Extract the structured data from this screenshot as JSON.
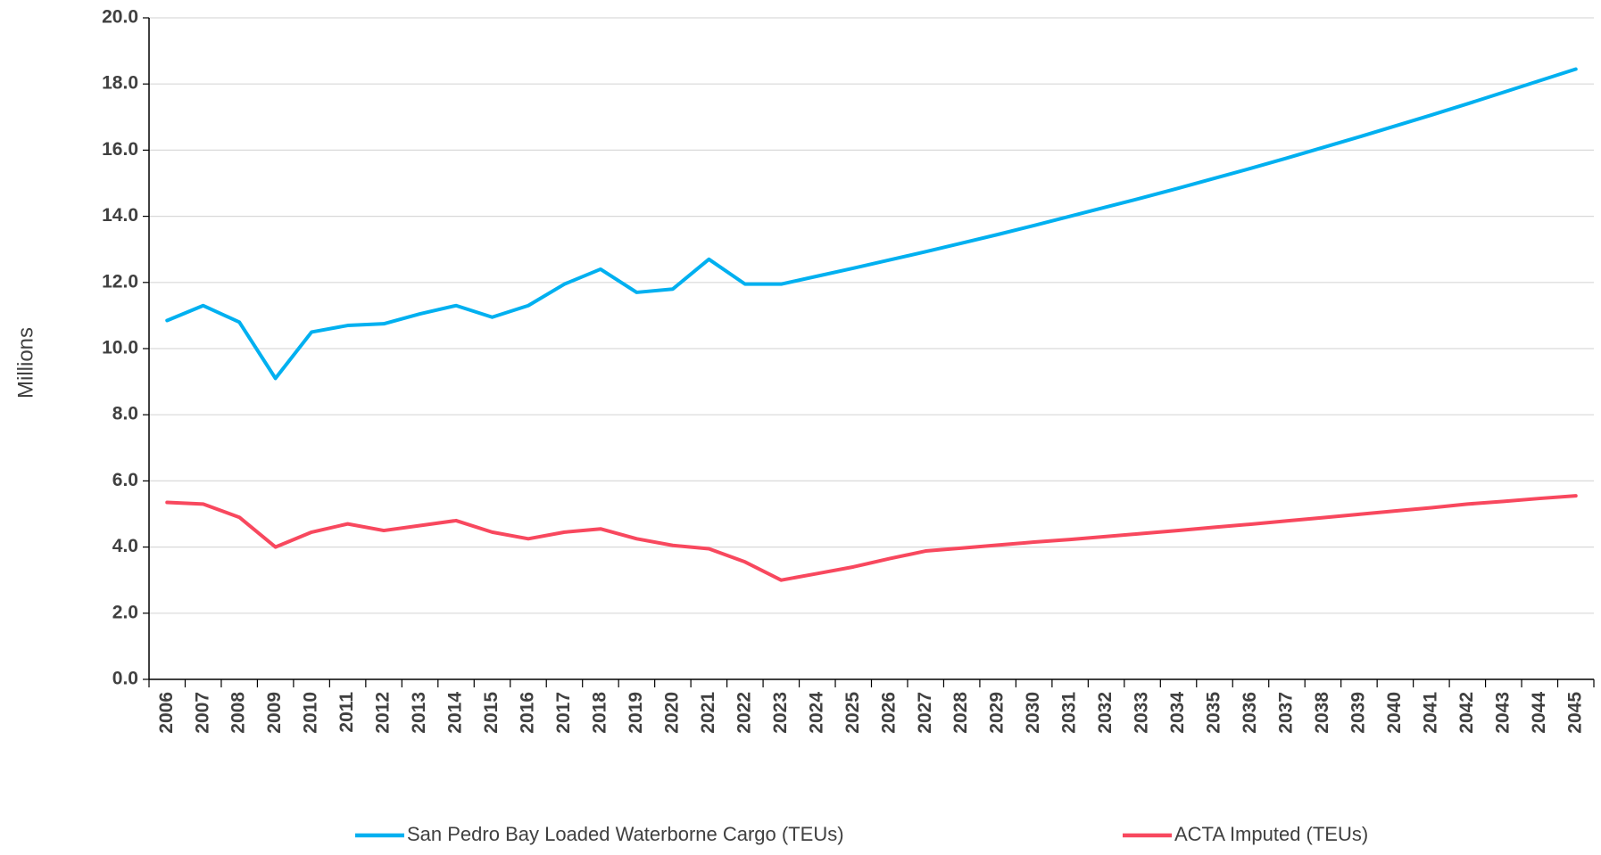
{
  "chart_data": {
    "type": "line",
    "y_label": "Millions",
    "categories": [
      "2006",
      "2007",
      "2008",
      "2009",
      "2010",
      "2011",
      "2012",
      "2013",
      "2014",
      "2015",
      "2016",
      "2017",
      "2018",
      "2019",
      "2020",
      "2021",
      "2022",
      "2023",
      "2024",
      "2025",
      "2026",
      "2027",
      "2028",
      "2029",
      "2030",
      "2031",
      "2032",
      "2033",
      "2034",
      "2035",
      "2036",
      "2037",
      "2038",
      "2039",
      "2040",
      "2041",
      "2042",
      "2043",
      "2044",
      "2045"
    ],
    "series": [
      {
        "name": "San Pedro Bay Loaded Waterborne Cargo (TEUs)",
        "color": "#00b0f0",
        "values": [
          10.85,
          11.3,
          10.8,
          9.1,
          10.5,
          10.7,
          10.75,
          11.05,
          11.3,
          10.95,
          11.3,
          11.95,
          12.4,
          11.7,
          11.8,
          12.7,
          11.95,
          11.95,
          12.19,
          12.43,
          12.68,
          12.93,
          13.19,
          13.45,
          13.72,
          14.0,
          14.28,
          14.56,
          14.85,
          15.15,
          15.45,
          15.76,
          16.08,
          16.4,
          16.73,
          17.06,
          17.4,
          17.75,
          18.1,
          18.45
        ]
      },
      {
        "name": "ACTA Imputed (TEUs)",
        "color": "#f8485e",
        "values": [
          5.35,
          5.3,
          4.9,
          4.0,
          4.45,
          4.7,
          4.5,
          4.65,
          4.8,
          4.45,
          4.25,
          4.45,
          4.55,
          4.25,
          4.05,
          3.95,
          3.55,
          3.0,
          3.2,
          3.4,
          3.65,
          3.88,
          3.97,
          4.06,
          4.15,
          4.23,
          4.32,
          4.41,
          4.5,
          4.6,
          4.69,
          4.79,
          4.89,
          4.99,
          5.09,
          5.19,
          5.3,
          5.38,
          5.47,
          5.55
        ]
      }
    ],
    "ylim": [
      0,
      20
    ],
    "yticks": [
      {
        "value": 0,
        "label": "0.0"
      },
      {
        "value": 2,
        "label": "2.0"
      },
      {
        "value": 4,
        "label": "4.0"
      },
      {
        "value": 6,
        "label": "6.0"
      },
      {
        "value": 8,
        "label": "8.0"
      },
      {
        "value": 10,
        "label": "10.0"
      },
      {
        "value": 12,
        "label": "12.0"
      },
      {
        "value": 14,
        "label": "14.0"
      },
      {
        "value": 16,
        "label": "16.0"
      },
      {
        "value": 18,
        "label": "18.0"
      },
      {
        "value": 20,
        "label": "20.0"
      }
    ],
    "grid": true,
    "legend": "bottom"
  }
}
